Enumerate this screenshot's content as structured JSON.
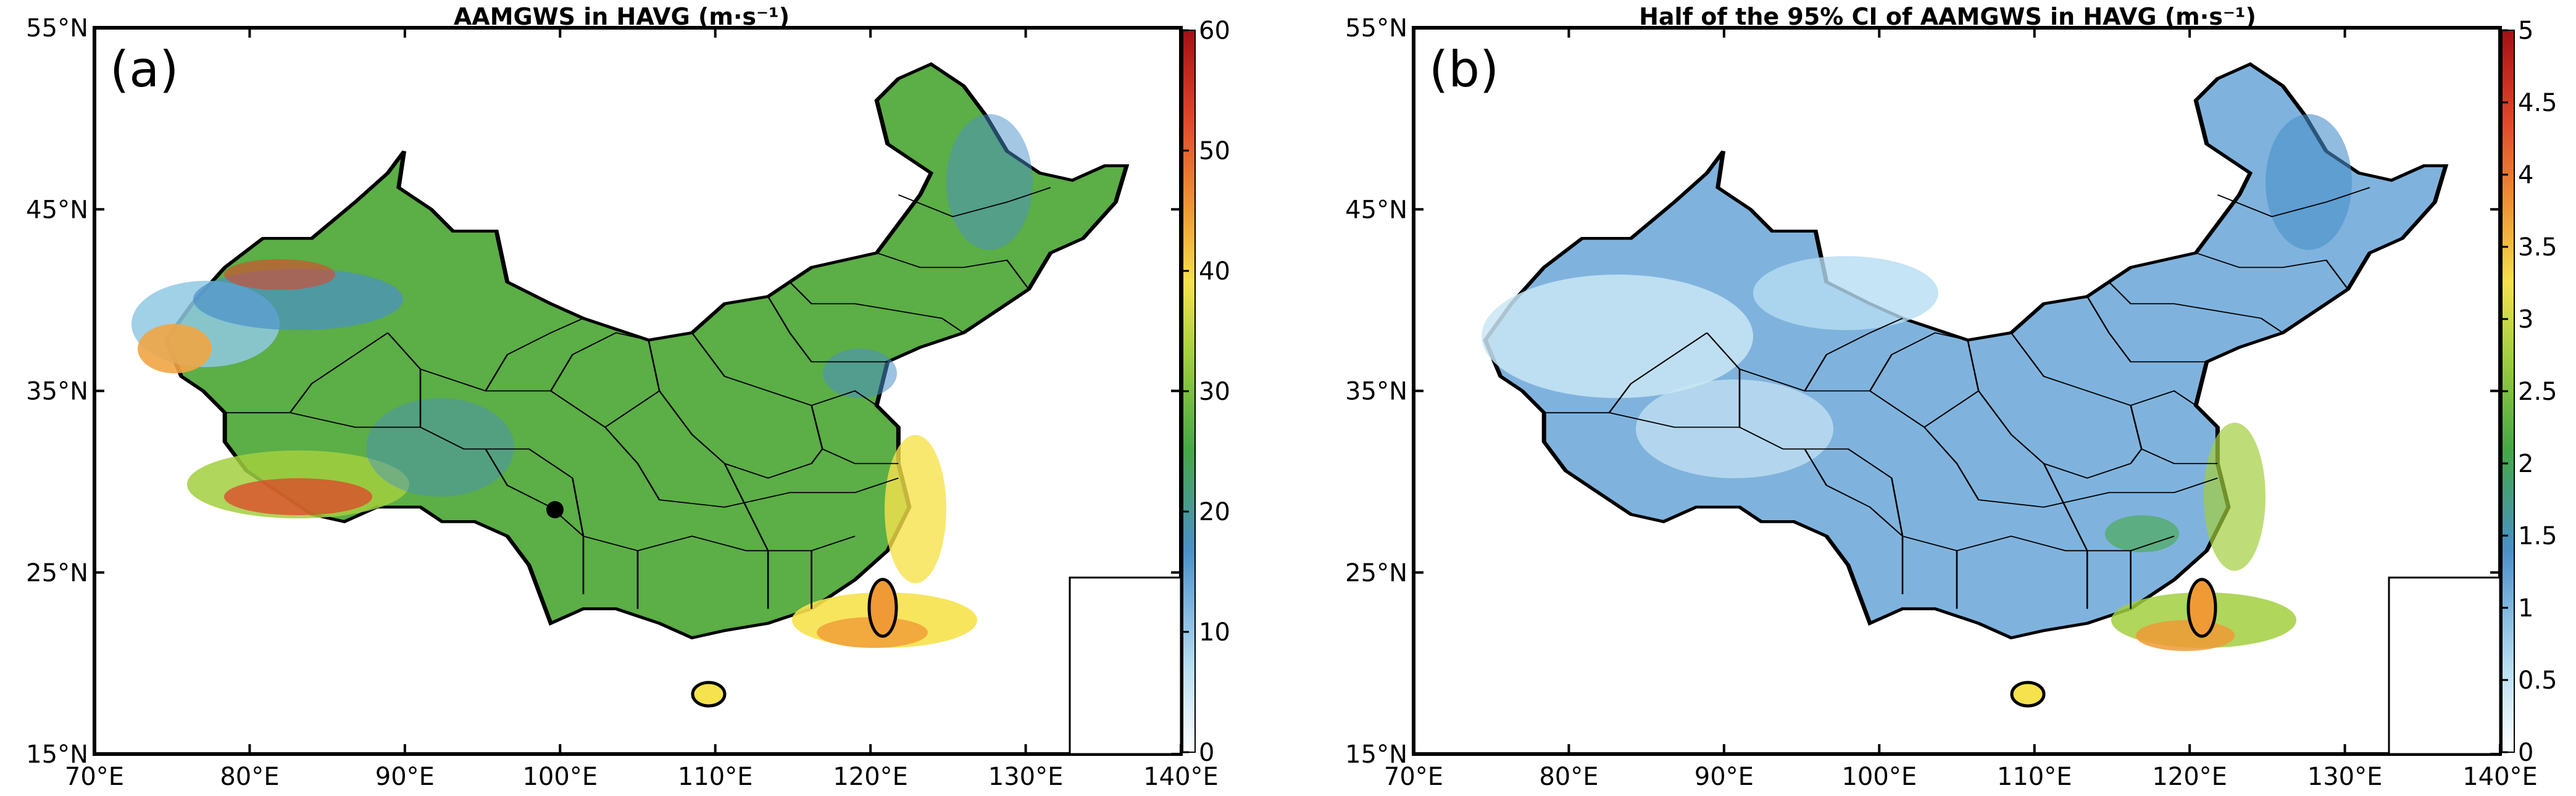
{
  "panels": [
    {
      "id": "a",
      "label": "(a)",
      "title": "AAMGWS in HAVG (m·s⁻¹)",
      "x_ticks": [
        "70°E",
        "80°E",
        "90°E",
        "100°E",
        "110°E",
        "120°E",
        "130°E",
        "140°E"
      ],
      "y_ticks": [
        "55°N",
        "45°N",
        "35°N",
        "25°N",
        "15°N"
      ],
      "colorbar": {
        "min": 0,
        "max": 60,
        "ticks": [
          "0",
          "10",
          "20",
          "30",
          "40",
          "50",
          "60"
        ]
      },
      "marker": {
        "lon": 103,
        "lat": 29.8,
        "color": "#000000"
      }
    },
    {
      "id": "b",
      "label": "(b)",
      "title": "Half of the 95% CI of AAMGWS in HAVG (m·s⁻¹)",
      "x_ticks": [
        "70°E",
        "80°E",
        "90°E",
        "100°E",
        "110°E",
        "120°E",
        "130°E",
        "140°E"
      ],
      "y_ticks": [
        "55°N",
        "45°N",
        "35°N",
        "25°N",
        "15°N"
      ],
      "colorbar": {
        "min": 0,
        "max": 5,
        "ticks": [
          "0",
          "0.5",
          "1",
          "1.5",
          "2",
          "2.5",
          "3",
          "3.5",
          "4",
          "4.5",
          "5"
        ]
      }
    }
  ],
  "colors": {
    "panel_a_base": "#5cae46",
    "panel_b_base": "#7fb3dd",
    "colormap": [
      "#ffffff",
      "#b7ddf2",
      "#4a90c9",
      "#45a845",
      "#a2cf3f",
      "#f6e24c",
      "#f09a35",
      "#e0442a",
      "#a50f15"
    ]
  }
}
